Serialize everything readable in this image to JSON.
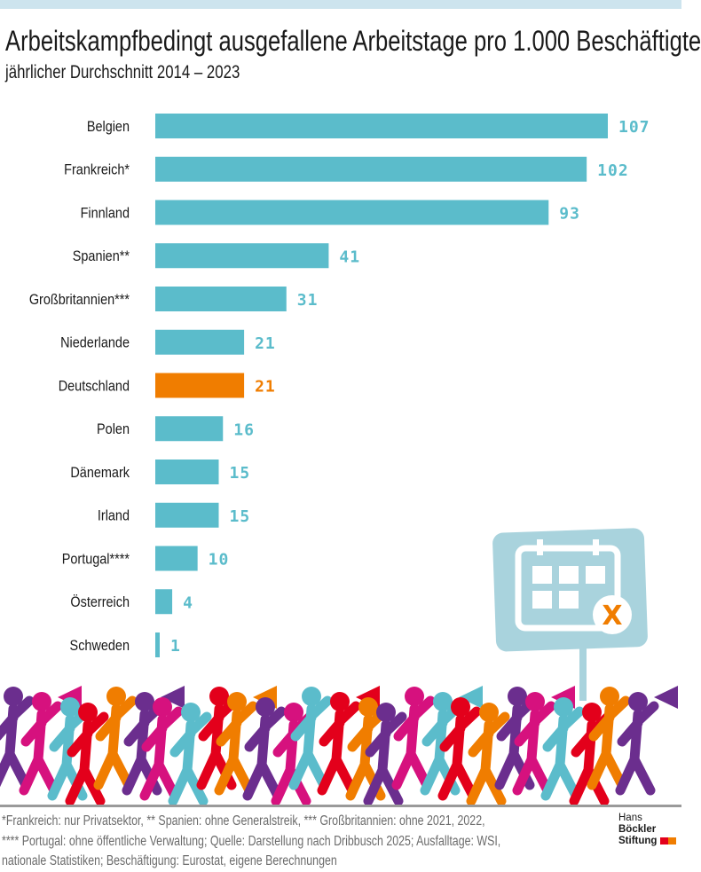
{
  "header": {
    "title": "Arbeitskampfbedingt ausgefallene Arbeitstage pro 1.000 Beschäftigte",
    "subtitle": "jährlicher Durchschnitt 2014 – 2023"
  },
  "chart_data": {
    "type": "bar",
    "orientation": "horizontal",
    "title": "Arbeitskampfbedingt ausgefallene Arbeitstage pro 1.000 Beschäftigte",
    "subtitle": "jährlicher Durchschnitt 2014 – 2023",
    "categories": [
      "Belgien",
      "Frankreich*",
      "Finnland",
      "Spanien**",
      "Großbritannien***",
      "Niederlande",
      "Deutschland",
      "Polen",
      "Dänemark",
      "Irland",
      "Portugal****",
      "Österreich",
      "Schweden"
    ],
    "values": [
      107,
      102,
      93,
      41,
      31,
      21,
      21,
      16,
      15,
      15,
      10,
      4,
      1
    ],
    "highlight": "Deutschland",
    "grid": false,
    "data_labels": true,
    "xlim": [
      0,
      107
    ]
  },
  "colors": {
    "bar": "#5bbccb",
    "highlight": "#f07d00",
    "crowd": [
      "#6b2e8e",
      "#d6117e",
      "#5bbccb",
      "#e3001b",
      "#f07d00"
    ],
    "sign": "#a9d3dd"
  },
  "footnotes": [
    "*Frankreich: nur Privatsektor, ** Spanien: ohne Generalstreik, *** Großbritannien: ohne 2021, 2022,",
    "**** Portugal: ohne öffentliche Verwaltung; Quelle: Darstellung nach Dribbusch 2025; Ausfalltage: WSI,",
    "nationale Statistiken; Beschäftigung: Eurostat, eigene Berechnungen"
  ],
  "logo": {
    "line1a": "Hans",
    "line1b": "Böckler",
    "line2": "Stiftung"
  }
}
